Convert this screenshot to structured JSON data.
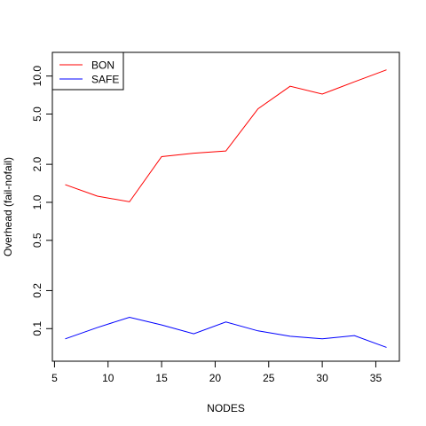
{
  "chart_data": {
    "type": "line",
    "xlabel": "NODES",
    "ylabel": "Overhead (fail-nofail)",
    "x": [
      6,
      9,
      12,
      15,
      18,
      21,
      24,
      27,
      30,
      33,
      36
    ],
    "xlim": [
      6,
      36
    ],
    "ylim": [
      0.068,
      12.5
    ],
    "ylog": true,
    "xticks": [
      5,
      10,
      15,
      20,
      25,
      30,
      35
    ],
    "yticks": [
      0.1,
      0.2,
      0.5,
      1.0,
      2.0,
      5.0,
      10.0
    ],
    "ytick_labels": [
      "0.1",
      "0.2",
      "0.5",
      "1.0",
      "2.0",
      "5.0",
      "10.0"
    ],
    "grid": false,
    "legend_position": "top-left",
    "series": [
      {
        "name": "BON",
        "color": "#ff0000",
        "values": [
          1.38,
          1.12,
          1.01,
          2.3,
          2.45,
          2.55,
          5.5,
          8.3,
          7.2,
          9.0,
          11.2
        ]
      },
      {
        "name": "SAFE",
        "color": "#0000ff",
        "values": [
          0.083,
          0.102,
          0.123,
          0.107,
          0.091,
          0.113,
          0.096,
          0.087,
          0.083,
          0.088,
          0.071
        ]
      }
    ]
  }
}
